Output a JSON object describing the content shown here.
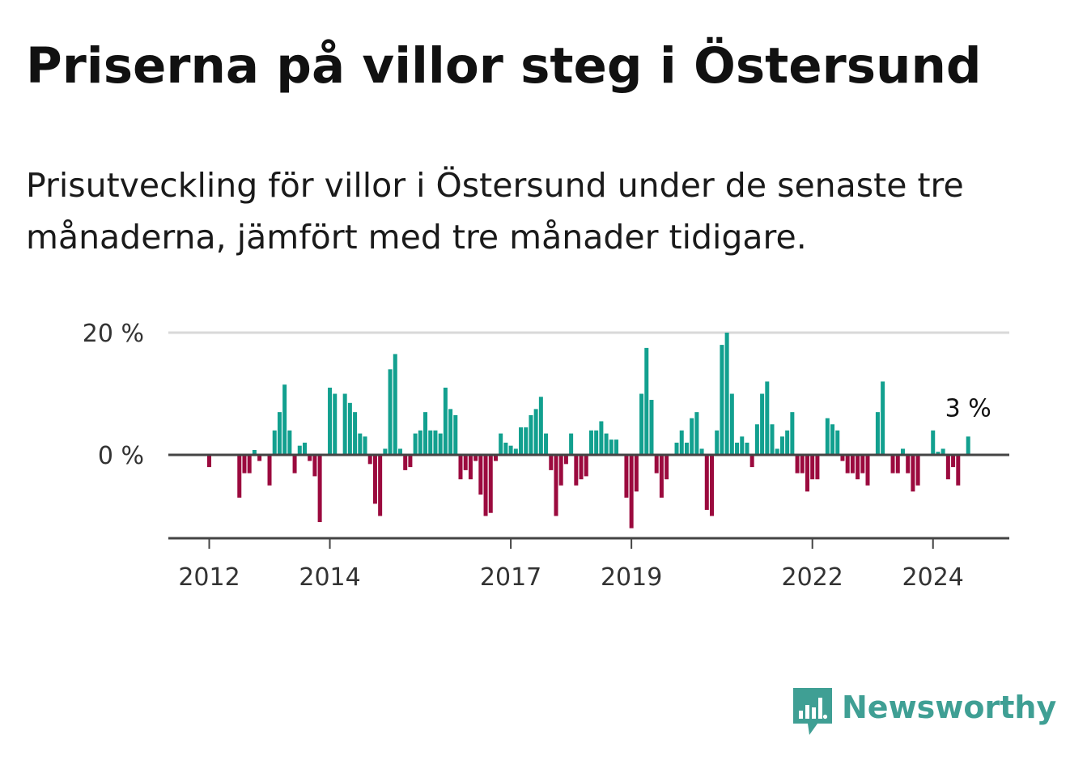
{
  "title": "Priserna på villor steg i Östersund",
  "subtitle": "Prisutveckling för villor i Östersund under de senaste tre månaderna, jämfört med tre månader tidigare.",
  "brand": {
    "name": "Newsworthy",
    "color": "#3f9f94",
    "icon": "bar-chart-speech-bubble-icon"
  },
  "colors": {
    "positive": "#12a08f",
    "negative": "#9b0a3e",
    "gridline": "#d9d9d9",
    "axis": "#444444"
  },
  "chart_data": {
    "type": "bar",
    "title": "",
    "xlabel": "",
    "ylabel": "",
    "ylim": [
      -14,
      20
    ],
    "y_ticks": [
      {
        "value": 0,
        "label": "0 %"
      },
      {
        "value": 20,
        "label": "20 %"
      }
    ],
    "x_ticks": [
      {
        "value": 2012,
        "label": "2012"
      },
      {
        "value": 2014,
        "label": "2014"
      },
      {
        "value": 2017,
        "label": "2017"
      },
      {
        "value": 2019,
        "label": "2019"
      },
      {
        "value": 2022,
        "label": "2022"
      },
      {
        "value": 2024,
        "label": "2024"
      }
    ],
    "x_start": "2012-01",
    "interval": "month",
    "grid": true,
    "legend": "none",
    "annotation": {
      "label": "3 %",
      "target": "last"
    },
    "values": [
      -2,
      0,
      0,
      0,
      0,
      0,
      -7,
      -3,
      -3,
      0.8,
      -1,
      0,
      -5,
      4,
      7,
      11.5,
      4,
      -3,
      1.5,
      2,
      -1,
      -3.5,
      -11,
      0,
      11,
      10,
      0,
      10,
      8.5,
      7,
      3.5,
      3,
      -1.5,
      -8,
      -10,
      1,
      14,
      16.5,
      1,
      -2.5,
      -2,
      3.5,
      4,
      7,
      4,
      4,
      3.5,
      11,
      7.5,
      6.5,
      -4,
      -2.5,
      -4,
      -1,
      -6.5,
      -10,
      -9.5,
      -1,
      3.5,
      2,
      1.5,
      1,
      4.5,
      4.5,
      6.5,
      7.5,
      9.5,
      3.5,
      -2.5,
      -10,
      -5,
      -1.5,
      3.5,
      -5,
      -4,
      -3.5,
      4,
      4,
      5.5,
      3.5,
      2.5,
      2.5,
      0,
      -7,
      -12,
      -6,
      10,
      17.5,
      9,
      -3,
      -7,
      -4,
      0,
      2,
      4,
      2,
      6,
      7,
      1,
      -9,
      -10,
      4,
      18,
      20,
      10,
      2,
      3,
      2,
      -2,
      5,
      10,
      12,
      5,
      1,
      3,
      4,
      7,
      -3,
      -3,
      -6,
      -4,
      -4,
      0,
      6,
      5,
      4,
      -1,
      -3,
      -3,
      -4,
      -3,
      -5,
      0,
      7,
      12,
      0,
      -3,
      -3,
      1,
      -3,
      -6,
      -5,
      0,
      0,
      4,
      0.5,
      1,
      -4,
      -2,
      -5,
      0,
      3
    ]
  }
}
